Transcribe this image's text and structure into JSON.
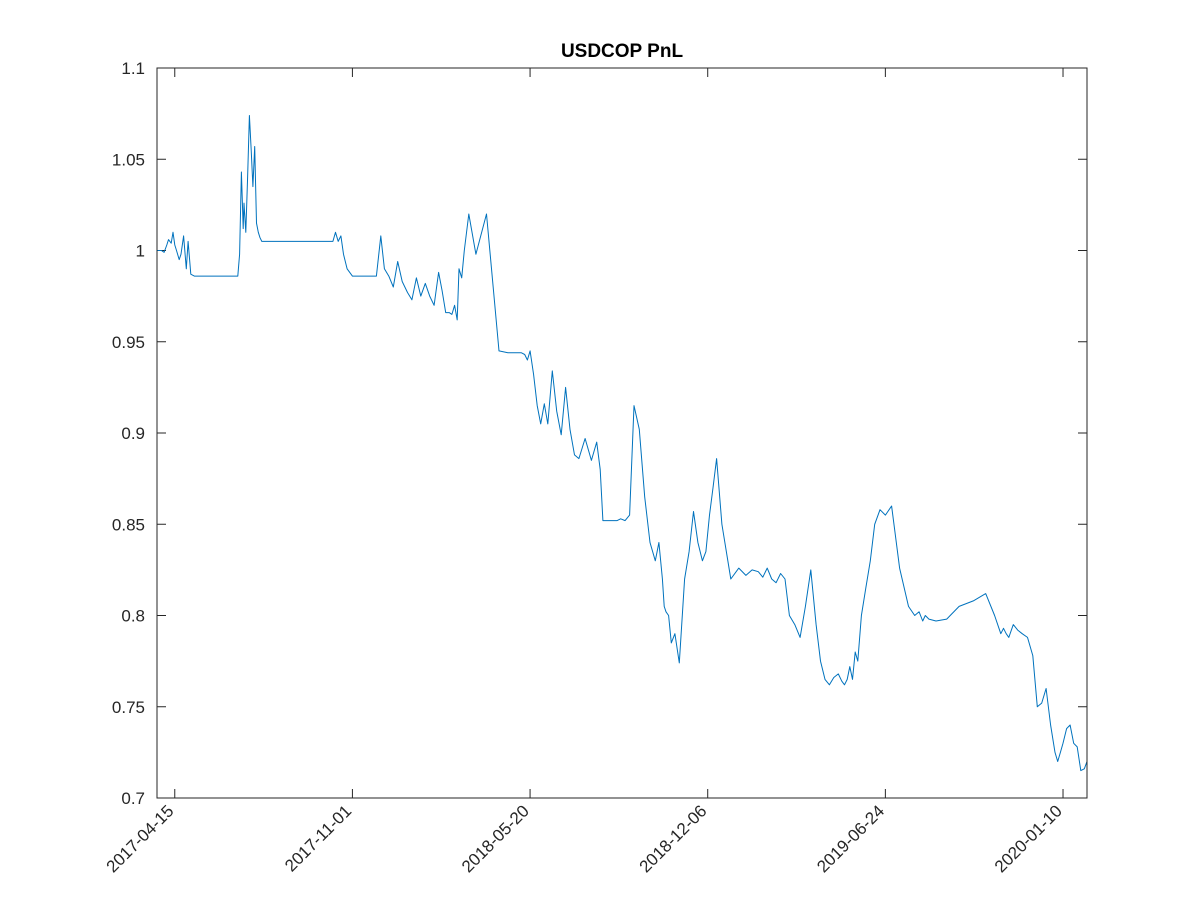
{
  "chart_data": {
    "type": "line",
    "title": "USDCOP PnL",
    "xlabel": "",
    "ylabel": "",
    "xlim": [
      "2017-03-26",
      "2020-02-06"
    ],
    "ylim": [
      0.7,
      1.1
    ],
    "yticks": [
      0.7,
      0.75,
      0.8,
      0.85,
      0.9,
      0.95,
      1,
      1.05,
      1.1
    ],
    "ytick_labels": [
      "0.7",
      "0.75",
      "0.8",
      "0.85",
      "0.9",
      "0.95",
      "1",
      "1.05",
      "1.1"
    ],
    "xticks": [
      "2017-04-15",
      "2017-11-01",
      "2018-05-20",
      "2018-12-06",
      "2019-06-24",
      "2020-01-10"
    ],
    "xtick_labels": [
      "2017-04-15",
      "2017-11-01",
      "2018-05-20",
      "2018-12-06",
      "2019-06-24",
      "2020-01-10"
    ],
    "grid": false,
    "box": true,
    "line_color": "#0072BD",
    "series": [
      {
        "x": [
          "2017-03-26",
          "2017-03-31",
          "2017-04-03",
          "2017-04-06",
          "2017-04-08",
          "2017-04-11",
          "2017-04-13",
          "2017-04-15",
          "2017-04-17",
          "2017-04-20",
          "2017-04-22",
          "2017-04-25",
          "2017-04-28",
          "2017-04-30",
          "2017-05-03",
          "2017-05-07",
          "2017-05-15",
          "2017-06-05",
          "2017-06-25",
          "2017-06-27",
          "2017-06-29",
          "2017-07-01",
          "2017-07-02",
          "2017-07-04",
          "2017-07-06",
          "2017-07-08",
          "2017-07-10",
          "2017-07-12",
          "2017-07-14",
          "2017-07-16",
          "2017-07-18",
          "2017-07-20",
          "2017-07-22",
          "2017-07-26",
          "2017-08-10",
          "2017-09-10",
          "2017-10-10",
          "2017-10-13",
          "2017-10-16",
          "2017-10-19",
          "2017-10-22",
          "2017-10-26",
          "2017-11-01",
          "2017-11-03",
          "2017-11-07",
          "2017-11-12",
          "2017-11-17",
          "2017-11-22",
          "2017-11-28",
          "2017-12-03",
          "2017-12-07",
          "2017-12-12",
          "2017-12-17",
          "2017-12-22",
          "2017-12-27",
          "2018-01-02",
          "2018-01-07",
          "2018-01-12",
          "2018-01-17",
          "2018-01-22",
          "2018-01-27",
          "2018-02-01",
          "2018-02-06",
          "2018-02-10",
          "2018-02-14",
          "2018-02-18",
          "2018-02-21",
          "2018-02-24",
          "2018-02-27",
          "2018-03-01",
          "2018-03-04",
          "2018-03-07",
          "2018-03-12",
          "2018-03-20",
          "2018-04-01",
          "2018-04-15",
          "2018-04-25",
          "2018-04-28",
          "2018-05-02",
          "2018-05-06",
          "2018-05-10",
          "2018-05-14",
          "2018-05-17",
          "2018-05-20",
          "2018-05-24",
          "2018-05-28",
          "2018-06-01",
          "2018-06-05",
          "2018-06-09",
          "2018-06-14",
          "2018-06-19",
          "2018-06-24",
          "2018-06-29",
          "2018-07-04",
          "2018-07-09",
          "2018-07-14",
          "2018-07-21",
          "2018-07-28",
          "2018-08-03",
          "2018-08-07",
          "2018-08-10",
          "2018-08-12",
          "2018-08-15",
          "2018-08-18",
          "2018-08-22",
          "2018-08-26",
          "2018-08-30",
          "2018-09-04",
          "2018-09-09",
          "2018-09-14",
          "2018-09-20",
          "2018-09-26",
          "2018-10-02",
          "2018-10-08",
          "2018-10-12",
          "2018-10-16",
          "2018-10-18",
          "2018-10-20",
          "2018-10-23",
          "2018-10-26",
          "2018-10-30",
          "2018-11-04",
          "2018-11-10",
          "2018-11-15",
          "2018-11-20",
          "2018-11-25",
          "2018-11-30",
          "2018-12-04",
          "2018-12-08",
          "2018-12-12",
          "2018-12-16",
          "2018-12-22",
          "2019-01-01",
          "2019-01-10",
          "2019-01-18",
          "2019-01-25",
          "2019-02-01",
          "2019-02-06",
          "2019-02-11",
          "2019-02-16",
          "2019-02-21",
          "2019-02-26",
          "2019-03-03",
          "2019-03-08",
          "2019-03-14",
          "2019-03-20",
          "2019-03-26",
          "2019-04-01",
          "2019-04-07",
          "2019-04-12",
          "2019-04-17",
          "2019-04-22",
          "2019-04-27",
          "2019-05-02",
          "2019-05-06",
          "2019-05-09",
          "2019-05-12",
          "2019-05-15",
          "2019-05-18",
          "2019-05-21",
          "2019-05-24",
          "2019-05-28",
          "2019-06-02",
          "2019-06-07",
          "2019-06-12",
          "2019-06-18",
          "2019-06-24",
          "2019-07-01",
          "2019-07-10",
          "2019-07-20",
          "2019-07-27",
          "2019-08-01",
          "2019-08-05",
          "2019-08-08",
          "2019-08-12",
          "2019-08-20",
          "2019-09-01",
          "2019-09-15",
          "2019-10-01",
          "2019-10-15",
          "2019-10-25",
          "2019-11-01",
          "2019-11-04",
          "2019-11-07",
          "2019-11-10",
          "2019-11-15",
          "2019-11-20",
          "2019-11-25",
          "2019-12-01",
          "2019-12-07",
          "2019-12-12",
          "2019-12-17",
          "2019-12-22",
          "2019-12-27",
          "2020-01-01",
          "2020-01-04",
          "2020-01-07",
          "2020-01-10",
          "2020-01-14",
          "2020-01-18",
          "2020-01-22",
          "2020-01-26",
          "2020-01-30",
          "2020-02-03",
          "2020-02-06"
        ],
        "y": [
          1.0,
          1.0,
          0.999,
          1.003,
          1.006,
          1.004,
          1.01,
          1.003,
          1.0,
          0.995,
          0.998,
          1.008,
          0.99,
          1.005,
          0.987,
          0.986,
          0.986,
          0.986,
          0.986,
          0.998,
          1.043,
          1.012,
          1.026,
          1.01,
          1.04,
          1.074,
          1.055,
          1.035,
          1.057,
          1.015,
          1.01,
          1.007,
          1.005,
          1.005,
          1.005,
          1.005,
          1.005,
          1.01,
          1.005,
          1.008,
          0.998,
          0.99,
          0.986,
          0.986,
          0.986,
          0.986,
          0.986,
          0.986,
          0.986,
          1.008,
          0.99,
          0.986,
          0.98,
          0.994,
          0.983,
          0.977,
          0.973,
          0.985,
          0.975,
          0.982,
          0.975,
          0.97,
          0.988,
          0.978,
          0.966,
          0.966,
          0.965,
          0.97,
          0.962,
          0.99,
          0.985,
          1.0,
          1.02,
          0.998,
          1.02,
          0.945,
          0.944,
          0.944,
          0.944,
          0.944,
          0.944,
          0.943,
          0.94,
          0.945,
          0.932,
          0.915,
          0.905,
          0.916,
          0.905,
          0.934,
          0.912,
          0.899,
          0.925,
          0.902,
          0.888,
          0.886,
          0.897,
          0.885,
          0.895,
          0.88,
          0.852,
          0.852,
          0.852,
          0.852,
          0.852,
          0.852,
          0.853,
          0.852,
          0.855,
          0.915,
          0.902,
          0.865,
          0.84,
          0.83,
          0.84,
          0.82,
          0.805,
          0.802,
          0.8,
          0.785,
          0.79,
          0.774,
          0.82,
          0.835,
          0.857,
          0.84,
          0.83,
          0.835,
          0.855,
          0.87,
          0.886,
          0.85,
          0.82,
          0.826,
          0.822,
          0.825,
          0.824,
          0.821,
          0.826,
          0.82,
          0.818,
          0.823,
          0.82,
          0.8,
          0.795,
          0.788,
          0.805,
          0.825,
          0.795,
          0.775,
          0.765,
          0.762,
          0.766,
          0.768,
          0.764,
          0.762,
          0.765,
          0.772,
          0.765,
          0.78,
          0.775,
          0.8,
          0.815,
          0.83,
          0.85,
          0.858,
          0.855,
          0.86,
          0.826,
          0.805,
          0.8,
          0.802,
          0.797,
          0.8,
          0.798,
          0.797,
          0.798,
          0.805,
          0.808,
          0.812,
          0.8,
          0.79,
          0.793,
          0.79,
          0.788,
          0.795,
          0.792,
          0.79,
          0.788,
          0.778,
          0.75,
          0.752,
          0.76,
          0.74,
          0.725,
          0.72,
          0.725,
          0.73,
          0.738,
          0.74,
          0.73,
          0.728,
          0.715,
          0.716,
          0.72
        ]
      }
    ]
  }
}
